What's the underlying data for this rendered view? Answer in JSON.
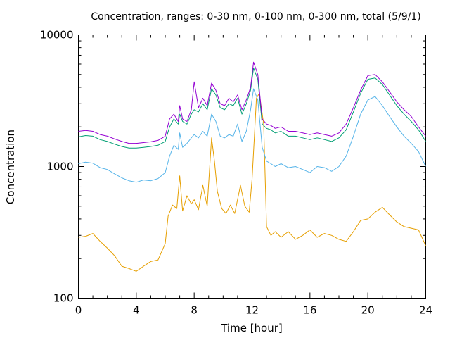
{
  "chart_data": {
    "type": "line",
    "title": "Concentration, ranges: 0-30 nm, 0-100 nm, 0-300 nm, total (5/9/1)",
    "xlabel": "Time [hour]",
    "ylabel": "Concentration",
    "xlim": [
      0,
      24
    ],
    "ylim": [
      100,
      10000
    ],
    "yscale": "log",
    "grid": false,
    "legend": "none",
    "xticks": [
      0,
      4,
      8,
      12,
      16,
      20,
      24
    ],
    "xtick_labels": [
      "0",
      "4",
      "8",
      "12",
      "16",
      "20",
      "24"
    ],
    "yticks": [
      100,
      1000,
      10000
    ],
    "ytick_labels": [
      "100",
      "1000",
      "10000"
    ],
    "series": [
      {
        "color": "#e69f00",
        "x": [
          0,
          0.5,
          1,
          1.5,
          2,
          2.5,
          3,
          3.5,
          4,
          4.5,
          5,
          5.5,
          6,
          6.2,
          6.5,
          6.8,
          7,
          7.2,
          7.5,
          7.8,
          8,
          8.3,
          8.6,
          8.9,
          9.2,
          9.4,
          9.6,
          9.9,
          10.2,
          10.5,
          10.8,
          11.2,
          11.5,
          11.8,
          12,
          12.3,
          12.5,
          12.8,
          13,
          13.3,
          13.6,
          14,
          14.5,
          15,
          15.5,
          16,
          16.5,
          17,
          17.5,
          18,
          18.5,
          19,
          19.5,
          20,
          20.5,
          21,
          21.5,
          22,
          22.5,
          23,
          23.5,
          24
        ],
        "values": [
          290,
          295,
          310,
          270,
          240,
          210,
          175,
          168,
          160,
          175,
          190,
          195,
          260,
          420,
          510,
          480,
          850,
          460,
          600,
          520,
          560,
          470,
          720,
          500,
          1650,
          1100,
          650,
          480,
          440,
          510,
          440,
          720,
          500,
          450,
          800,
          3300,
          3600,
          2100,
          350,
          300,
          320,
          290,
          320,
          280,
          300,
          330,
          290,
          310,
          300,
          280,
          270,
          320,
          390,
          400,
          450,
          490,
          430,
          380,
          350,
          340,
          330,
          250
        ]
      },
      {
        "color": "#56b4e9",
        "x": [
          0,
          0.5,
          1,
          1.5,
          2,
          2.5,
          3,
          3.5,
          4,
          4.5,
          5,
          5.5,
          6,
          6.3,
          6.6,
          6.9,
          7,
          7.2,
          7.5,
          7.8,
          8,
          8.3,
          8.6,
          8.9,
          9.2,
          9.5,
          9.8,
          10.1,
          10.4,
          10.7,
          11,
          11.3,
          11.6,
          11.9,
          12.1,
          12.4,
          12.7,
          13,
          13.3,
          13.6,
          14,
          14.5,
          15,
          15.5,
          16,
          16.5,
          17,
          17.5,
          18,
          18.5,
          19,
          19.5,
          20,
          20.5,
          21,
          21.5,
          22,
          22.5,
          23,
          23.5,
          24
        ],
        "values": [
          1050,
          1080,
          1060,
          980,
          950,
          880,
          820,
          780,
          760,
          790,
          780,
          810,
          900,
          1200,
          1450,
          1350,
          1800,
          1400,
          1500,
          1650,
          1750,
          1650,
          1850,
          1700,
          2500,
          2200,
          1700,
          1650,
          1750,
          1700,
          2100,
          1550,
          1850,
          2700,
          3900,
          3200,
          1400,
          1100,
          1050,
          1000,
          1050,
          980,
          1000,
          950,
          900,
          1000,
          980,
          920,
          1000,
          1200,
          1700,
          2500,
          3200,
          3400,
          2900,
          2400,
          2000,
          1700,
          1500,
          1300,
          1000
        ]
      },
      {
        "color": "#009e73",
        "x": [
          0,
          0.5,
          1,
          1.5,
          2,
          2.5,
          3,
          3.5,
          4,
          4.5,
          5,
          5.5,
          6,
          6.3,
          6.6,
          6.9,
          7,
          7.2,
          7.5,
          7.8,
          8,
          8.3,
          8.6,
          8.9,
          9.2,
          9.5,
          9.8,
          10.1,
          10.4,
          10.7,
          11,
          11.3,
          11.6,
          11.9,
          12.1,
          12.4,
          12.7,
          13,
          13.3,
          13.6,
          14,
          14.5,
          15,
          15.5,
          16,
          16.5,
          17,
          17.5,
          18,
          18.5,
          19,
          19.5,
          20,
          20.5,
          21,
          21.5,
          22,
          22.5,
          23,
          23.5,
          24
        ],
        "values": [
          1680,
          1720,
          1700,
          1600,
          1550,
          1480,
          1420,
          1380,
          1380,
          1400,
          1420,
          1450,
          1550,
          2000,
          2300,
          2100,
          2500,
          2200,
          2100,
          2500,
          2700,
          2600,
          3000,
          2700,
          3900,
          3500,
          2800,
          2700,
          3000,
          2900,
          3300,
          2500,
          3000,
          3800,
          5600,
          4600,
          2100,
          1950,
          1900,
          1800,
          1850,
          1700,
          1700,
          1650,
          1600,
          1650,
          1600,
          1550,
          1650,
          1900,
          2600,
          3600,
          4600,
          4700,
          4200,
          3500,
          2900,
          2500,
          2200,
          1900,
          1550
        ]
      },
      {
        "color": "#9400d3",
        "x": [
          0,
          0.5,
          1,
          1.5,
          2,
          2.5,
          3,
          3.5,
          4,
          4.5,
          5,
          5.5,
          6,
          6.3,
          6.6,
          6.9,
          7,
          7.2,
          7.5,
          7.8,
          8,
          8.3,
          8.6,
          8.9,
          9.2,
          9.5,
          9.8,
          10.1,
          10.4,
          10.7,
          11,
          11.3,
          11.6,
          11.9,
          12.1,
          12.4,
          12.7,
          13,
          13.3,
          13.6,
          14,
          14.5,
          15,
          15.5,
          16,
          16.5,
          17,
          17.5,
          18,
          18.5,
          19,
          19.5,
          20,
          20.5,
          21,
          21.5,
          22,
          22.5,
          23,
          23.5,
          24
        ],
        "values": [
          1850,
          1880,
          1850,
          1750,
          1700,
          1620,
          1550,
          1500,
          1500,
          1520,
          1540,
          1580,
          1700,
          2300,
          2500,
          2200,
          2900,
          2300,
          2200,
          2700,
          4400,
          2800,
          3300,
          2900,
          4300,
          3800,
          3000,
          2900,
          3300,
          3100,
          3500,
          2700,
          3200,
          4000,
          6200,
          5000,
          2300,
          2100,
          2050,
          1950,
          2000,
          1850,
          1850,
          1800,
          1750,
          1800,
          1750,
          1700,
          1800,
          2100,
          2800,
          3800,
          4900,
          5000,
          4400,
          3700,
          3100,
          2700,
          2400,
          2000,
          1700
        ]
      }
    ]
  }
}
